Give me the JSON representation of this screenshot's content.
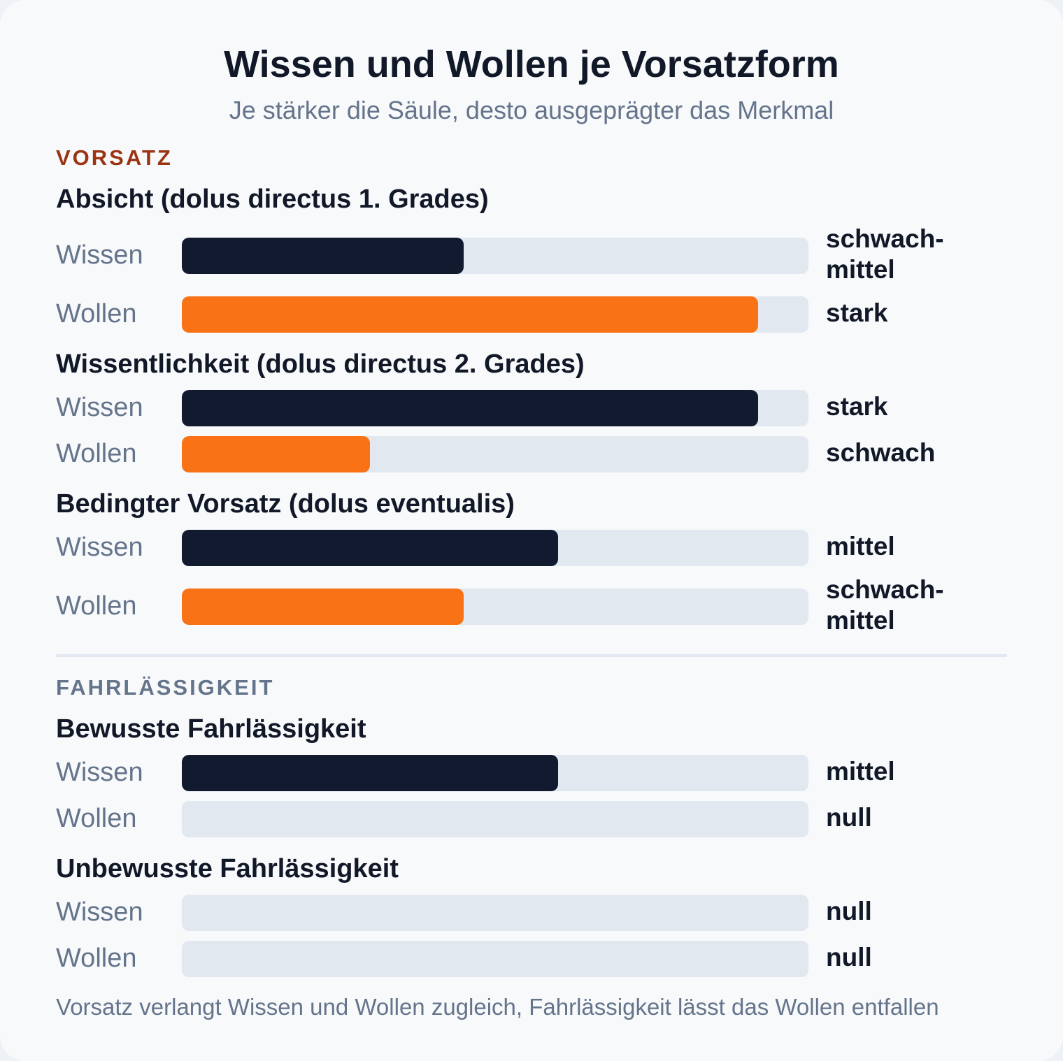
{
  "chart_data": {
    "type": "bar",
    "orientation": "horizontal",
    "title": "Wissen und Wollen je Vorsatzform",
    "subtitle": "Je stärker die Säule, desto ausgeprägter das Merkmal",
    "xlim": [
      0,
      1
    ],
    "colors": {
      "Wissen": "#111a2e",
      "Wollen": "#f97316",
      "track": "#e2e8f0"
    },
    "sections": [
      {
        "label": "VORSATZ",
        "groups": [
          {
            "title": "Absicht (dolus directus 1. Grades)",
            "rows": [
              {
                "label": "Wissen",
                "value": 0.45,
                "value_label": "schwach-\nmittel"
              },
              {
                "label": "Wollen",
                "value": 0.92,
                "value_label": "stark"
              }
            ]
          },
          {
            "title": "Wissentlichkeit (dolus directus 2. Grades)",
            "rows": [
              {
                "label": "Wissen",
                "value": 0.92,
                "value_label": "stark"
              },
              {
                "label": "Wollen",
                "value": 0.3,
                "value_label": "schwach"
              }
            ]
          },
          {
            "title": "Bedingter Vorsatz (dolus eventualis)",
            "rows": [
              {
                "label": "Wissen",
                "value": 0.6,
                "value_label": "mittel"
              },
              {
                "label": "Wollen",
                "value": 0.45,
                "value_label": "schwach-\nmittel"
              }
            ]
          }
        ]
      },
      {
        "label": "FAHRLÄSSIGKEIT",
        "groups": [
          {
            "title": "Bewusste Fahrlässigkeit",
            "rows": [
              {
                "label": "Wissen",
                "value": 0.6,
                "value_label": "mittel"
              },
              {
                "label": "Wollen",
                "value": 0,
                "value_label": "null"
              }
            ]
          },
          {
            "title": "Unbewusste Fahrlässigkeit",
            "rows": [
              {
                "label": "Wissen",
                "value": 0,
                "value_label": "null"
              },
              {
                "label": "Wollen",
                "value": 0,
                "value_label": "null"
              }
            ]
          }
        ]
      }
    ],
    "footnote": "Vorsatz verlangt Wissen und Wollen zugleich, Fahrlässigkeit lässt das Wollen entfallen"
  }
}
